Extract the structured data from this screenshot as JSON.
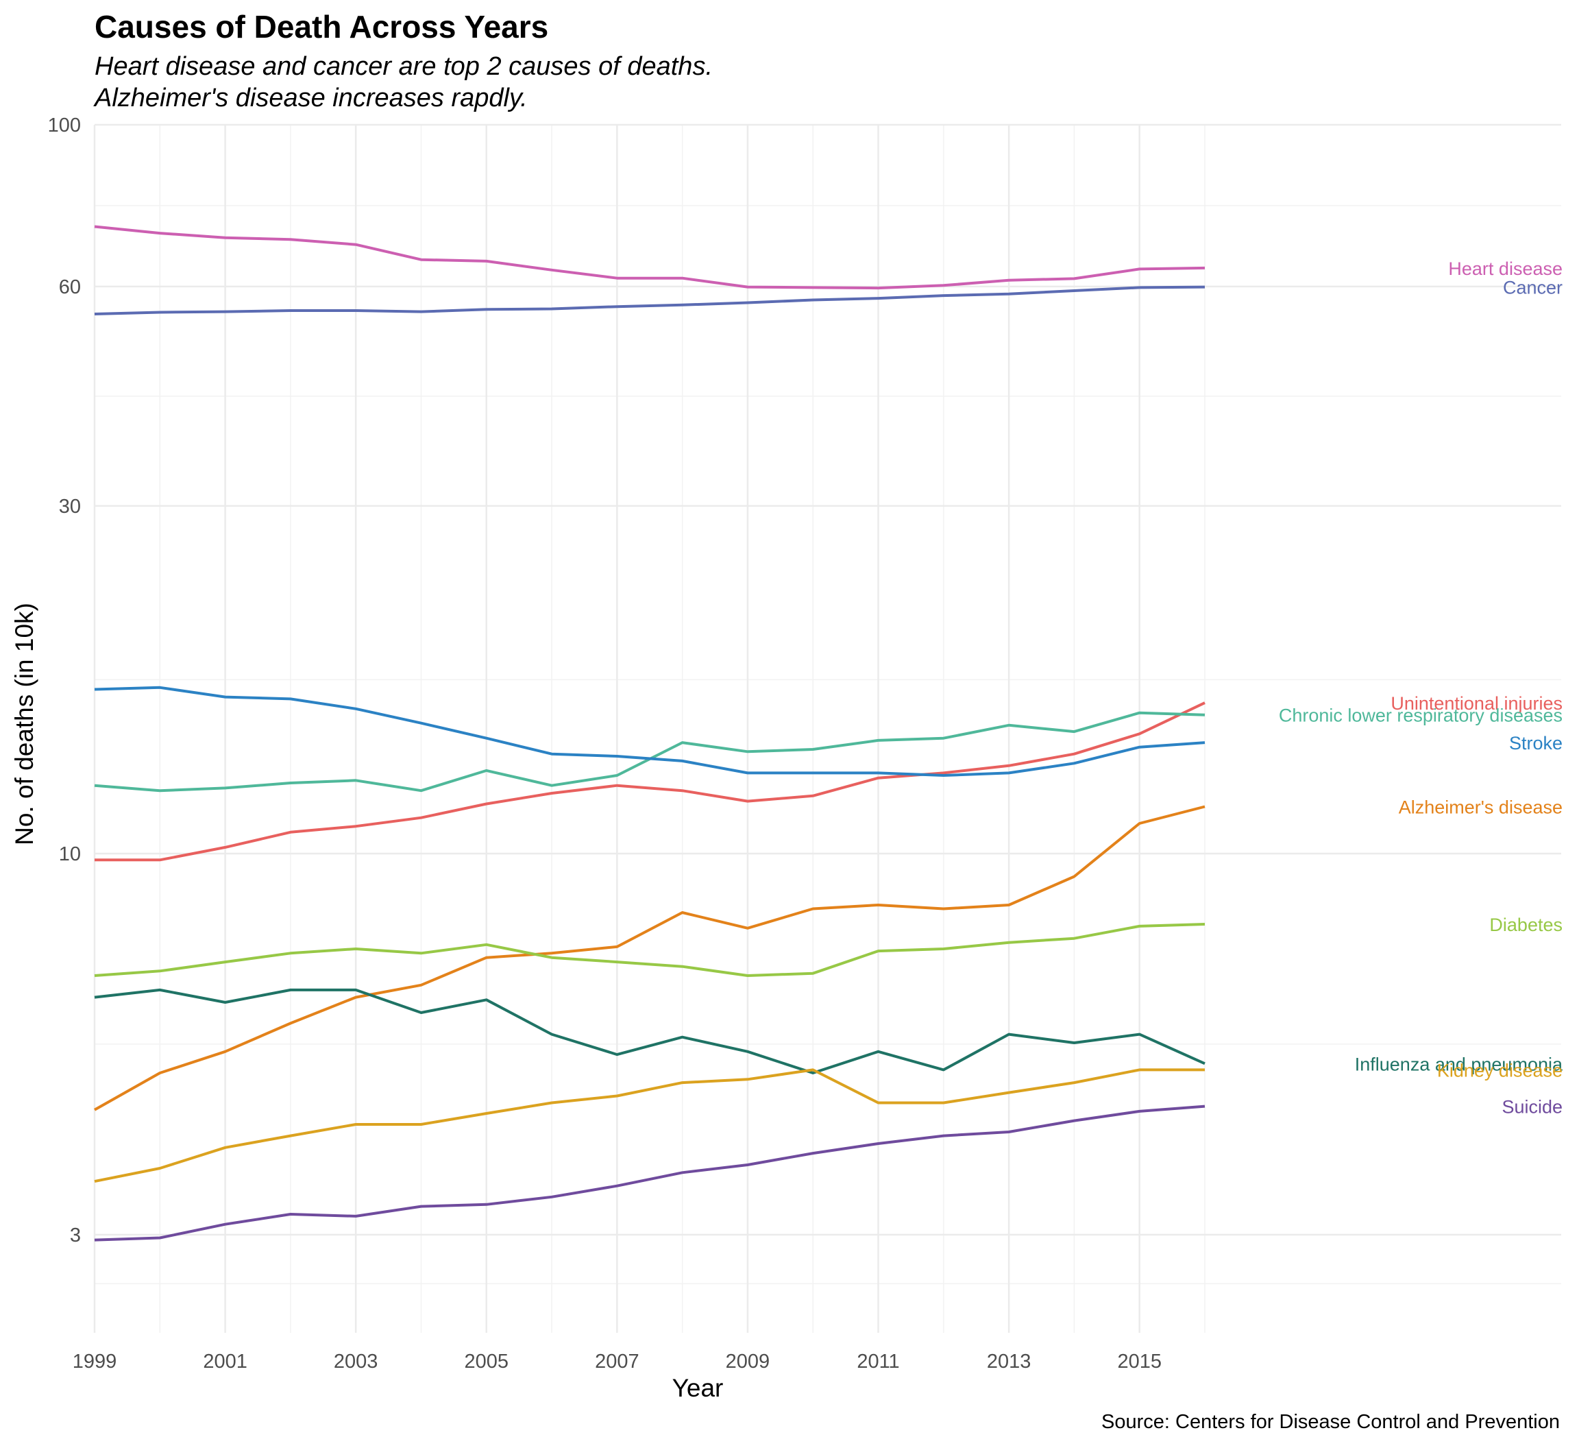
{
  "chart_data": {
    "type": "line",
    "title": "Causes of Death Across Years",
    "subtitle": [
      "Heart disease and cancer are top 2 causes of deaths.",
      "Alzheimer's disease increases rapdly."
    ],
    "xlabel": "Year",
    "ylabel": "No. of deaths (in 10k)",
    "caption": "Source: Centers for Disease Control and Prevention",
    "y_scale": "log",
    "ylim": [
      2.2,
      100
    ],
    "xlim": [
      1999,
      2016
    ],
    "x_ticks": [
      "1999",
      "2001",
      "2003",
      "2005",
      "2007",
      "2009",
      "2011",
      "2013",
      "2015"
    ],
    "y_ticks": [
      "3",
      "10",
      "30",
      "60",
      "100"
    ],
    "grid": true,
    "legend": "direct labels at right",
    "x": [
      1999,
      2000,
      2001,
      2002,
      2003,
      2004,
      2005,
      2006,
      2007,
      2008,
      2009,
      2010,
      2011,
      2012,
      2013,
      2014,
      2015,
      2016
    ],
    "series": [
      {
        "name": "Heart disease",
        "color": "#cc5fb1",
        "values": [
          72.5,
          71.0,
          70.0,
          69.6,
          68.5,
          65.3,
          65.0,
          63.2,
          61.6,
          61.6,
          59.9,
          59.8,
          59.7,
          60.2,
          61.2,
          61.5,
          63.4,
          63.6
        ]
      },
      {
        "name": "Cancer",
        "color": "#5b6bb2",
        "values": [
          55.0,
          55.3,
          55.4,
          55.6,
          55.6,
          55.4,
          55.8,
          55.9,
          56.3,
          56.6,
          57.0,
          57.5,
          57.8,
          58.3,
          58.6,
          59.2,
          59.8,
          59.9
        ]
      },
      {
        "name": "Unintentional injuries",
        "color": "#e8605e",
        "values": [
          9.8,
          9.8,
          10.2,
          10.7,
          10.9,
          11.2,
          11.7,
          12.1,
          12.4,
          12.2,
          11.8,
          12.0,
          12.7,
          12.9,
          13.2,
          13.7,
          14.6,
          16.1
        ]
      },
      {
        "name": "Chronic lower respiratory diseases",
        "color": "#4fb89a",
        "values": [
          12.4,
          12.2,
          12.3,
          12.5,
          12.6,
          12.2,
          13.0,
          12.4,
          12.8,
          14.2,
          13.8,
          13.9,
          14.3,
          14.4,
          15.0,
          14.7,
          15.6,
          15.5
        ]
      },
      {
        "name": "Stroke",
        "color": "#2b82c4",
        "values": [
          16.8,
          16.9,
          16.4,
          16.3,
          15.8,
          15.1,
          14.4,
          13.7,
          13.6,
          13.4,
          12.9,
          12.9,
          12.9,
          12.8,
          12.9,
          13.3,
          14.0,
          14.2
        ]
      },
      {
        "name": "Alzheimer's disease",
        "color": "#e3821a",
        "values": [
          4.45,
          5.0,
          5.35,
          5.85,
          6.35,
          6.6,
          7.2,
          7.3,
          7.45,
          8.3,
          7.9,
          8.4,
          8.5,
          8.4,
          8.5,
          9.3,
          11.0,
          11.6
        ]
      },
      {
        "name": "Diabetes",
        "color": "#97c846",
        "values": [
          6.8,
          6.9,
          7.1,
          7.3,
          7.4,
          7.3,
          7.5,
          7.2,
          7.1,
          7.0,
          6.8,
          6.85,
          7.35,
          7.4,
          7.55,
          7.65,
          7.95,
          8.0
        ]
      },
      {
        "name": "Influenza and pneumonia",
        "color": "#1f7365",
        "values": [
          6.35,
          6.5,
          6.25,
          6.5,
          6.5,
          6.05,
          6.3,
          5.65,
          5.3,
          5.6,
          5.35,
          5.0,
          5.35,
          5.05,
          5.65,
          5.5,
          5.65,
          5.15
        ]
      },
      {
        "name": "Kidney disease",
        "color": "#dba21f",
        "values": [
          3.55,
          3.7,
          3.95,
          4.1,
          4.25,
          4.25,
          4.4,
          4.55,
          4.65,
          4.85,
          4.9,
          5.05,
          4.55,
          4.55,
          4.7,
          4.85,
          5.05,
          5.05
        ]
      },
      {
        "name": "Suicide",
        "color": "#6f4b9d",
        "values": [
          2.95,
          2.97,
          3.1,
          3.2,
          3.18,
          3.28,
          3.3,
          3.38,
          3.5,
          3.65,
          3.74,
          3.88,
          4.0,
          4.1,
          4.15,
          4.3,
          4.43,
          4.5
        ]
      }
    ]
  }
}
